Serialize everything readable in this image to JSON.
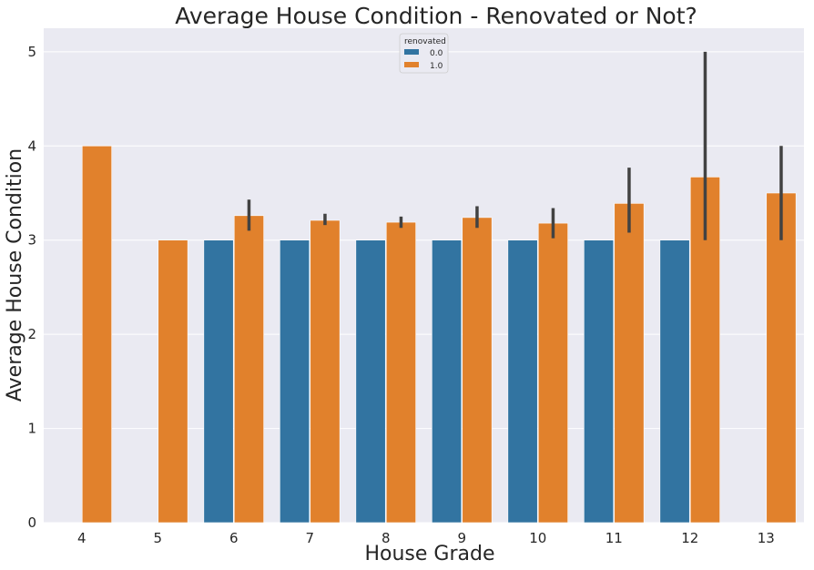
{
  "chart_data": {
    "type": "bar",
    "title": "Average House Condition - Renovated or Not?",
    "xlabel": "House Grade",
    "ylabel": "Average House Condition",
    "categories": [
      "4",
      "5",
      "6",
      "7",
      "8",
      "9",
      "10",
      "11",
      "12",
      "13"
    ],
    "ylim": [
      0,
      5.25
    ],
    "yticks": [
      0,
      1,
      2,
      3,
      4,
      5
    ],
    "grid": true,
    "legend": {
      "title": "renovated",
      "placement": "top-center"
    },
    "series": [
      {
        "name": "0.0",
        "color": "#3274a1",
        "values": [
          null,
          null,
          3.0,
          3.0,
          3.0,
          3.0,
          3.0,
          3.0,
          3.0,
          null
        ],
        "error_low": [
          null,
          null,
          null,
          null,
          null,
          null,
          null,
          null,
          null,
          null
        ],
        "error_high": [
          null,
          null,
          null,
          null,
          null,
          null,
          null,
          null,
          null,
          null
        ]
      },
      {
        "name": "1.0",
        "color": "#e1812c",
        "values": [
          4.0,
          3.0,
          3.26,
          3.21,
          3.19,
          3.24,
          3.18,
          3.39,
          3.67,
          3.5
        ],
        "error_low": [
          null,
          null,
          3.1,
          3.16,
          3.13,
          3.13,
          3.02,
          3.08,
          3.0,
          3.0
        ],
        "error_high": [
          null,
          null,
          3.43,
          3.28,
          3.25,
          3.36,
          3.34,
          3.77,
          5.0,
          4.0
        ]
      }
    ]
  },
  "colors": {
    "plot_background": "#eaeaf2",
    "grid": "#ffffff",
    "error_bar": "#424242"
  }
}
